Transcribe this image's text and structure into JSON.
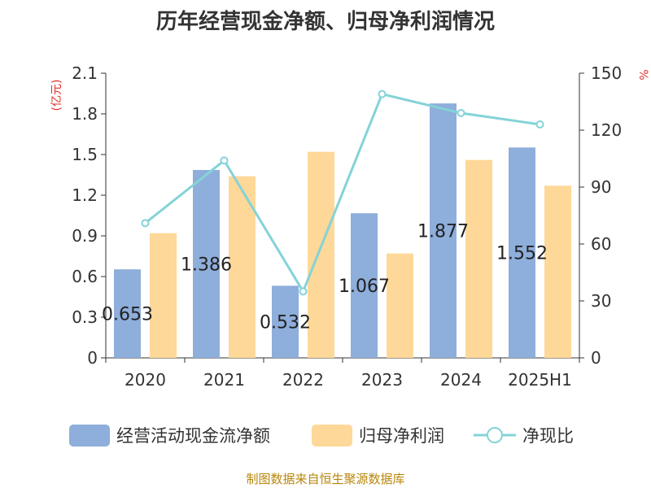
{
  "chart_data": {
    "type": "bar",
    "title": "历年经营现金净额、归母净利润情况",
    "categories": [
      "2020",
      "2021",
      "2022",
      "2023",
      "2024",
      "2025H1"
    ],
    "left_axis": {
      "label": "(亿元)",
      "min": 0,
      "max": 2.1,
      "ticks": [
        "0",
        "0.3",
        "0.6",
        "0.9",
        "1.2",
        "1.5",
        "1.8",
        "2.1"
      ]
    },
    "right_axis": {
      "label": "%",
      "min": 0,
      "max": 150,
      "ticks": [
        "0",
        "30",
        "60",
        "90",
        "120",
        "150"
      ]
    },
    "series": [
      {
        "name": "经营活动现金流净额",
        "kind": "bar",
        "axis": "left",
        "color": "#8eaedb",
        "values": [
          0.653,
          1.386,
          0.532,
          1.067,
          1.877,
          1.552
        ],
        "labels": [
          "0.653",
          "1.386",
          "0.532",
          "1.067",
          "1.877",
          "1.552"
        ]
      },
      {
        "name": "归母净利润",
        "kind": "bar",
        "axis": "left",
        "color": "#fdd898",
        "values": [
          0.92,
          1.34,
          1.52,
          0.77,
          1.46,
          1.27
        ]
      },
      {
        "name": "净现比",
        "kind": "line",
        "axis": "right",
        "color": "#84d3d8",
        "values": [
          71,
          104,
          35,
          139,
          129,
          123
        ]
      }
    ],
    "legend_position": "bottom",
    "grid": false
  },
  "source_text": "制图数据来自恒生聚源数据库"
}
